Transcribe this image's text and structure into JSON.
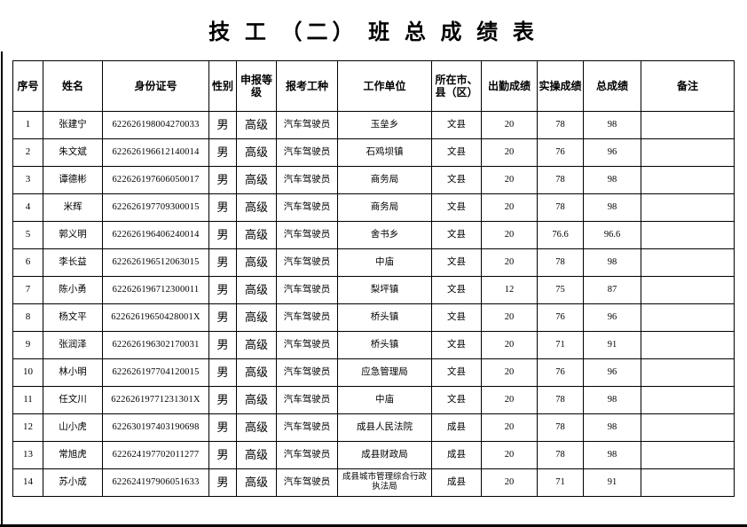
{
  "page": {
    "title": "技 工 （二） 班 总 成 绩 表"
  },
  "table": {
    "headers": [
      "序号",
      "姓名",
      "身份证号",
      "性别",
      "申报等级",
      "报考工种",
      "工作单位",
      "所在市、县（区）",
      "出勤成绩",
      "实操成绩",
      "总成绩",
      "备注"
    ],
    "rows": [
      {
        "no": "1",
        "name": "张建宁",
        "id_number": "622626198004270033",
        "gender": "男",
        "level": "高级",
        "job": "汽车驾驶员",
        "unit": "玉垒乡",
        "county": "文县",
        "attendance": "20",
        "practical": "78",
        "total": "98",
        "remark": ""
      },
      {
        "no": "2",
        "name": "朱文斌",
        "id_number": "622626196612140014",
        "gender": "男",
        "level": "高级",
        "job": "汽车驾驶员",
        "unit": "石鸡坝镇",
        "county": "文县",
        "attendance": "20",
        "practical": "76",
        "total": "96",
        "remark": ""
      },
      {
        "no": "3",
        "name": "谭德彬",
        "id_number": "622626197606050017",
        "gender": "男",
        "level": "高级",
        "job": "汽车驾驶员",
        "unit": "商务局",
        "county": "文县",
        "attendance": "20",
        "practical": "78",
        "total": "98",
        "remark": ""
      },
      {
        "no": "4",
        "name": "米辉",
        "id_number": "622626197709300015",
        "gender": "男",
        "level": "高级",
        "job": "汽车驾驶员",
        "unit": "商务局",
        "county": "文县",
        "attendance": "20",
        "practical": "78",
        "total": "98",
        "remark": ""
      },
      {
        "no": "5",
        "name": "郭义明",
        "id_number": "622626196406240014",
        "gender": "男",
        "level": "高级",
        "job": "汽车驾驶员",
        "unit": "舍书乡",
        "county": "文县",
        "attendance": "20",
        "practical": "76.6",
        "total": "96.6",
        "remark": ""
      },
      {
        "no": "6",
        "name": "李长益",
        "id_number": "622626196512063015",
        "gender": "男",
        "level": "高级",
        "job": "汽车驾驶员",
        "unit": "中庙",
        "county": "文县",
        "attendance": "20",
        "practical": "78",
        "total": "98",
        "remark": ""
      },
      {
        "no": "7",
        "name": "陈小勇",
        "id_number": "622626196712300011",
        "gender": "男",
        "level": "高级",
        "job": "汽车驾驶员",
        "unit": "梨坪镇",
        "county": "文县",
        "attendance": "12",
        "practical": "75",
        "total": "87",
        "remark": ""
      },
      {
        "no": "8",
        "name": "杨文平",
        "id_number": "62262619650428001X",
        "gender": "男",
        "level": "高级",
        "job": "汽车驾驶员",
        "unit": "桥头镇",
        "county": "文县",
        "attendance": "20",
        "practical": "76",
        "total": "96",
        "remark": ""
      },
      {
        "no": "9",
        "name": "张润泽",
        "id_number": "622626196302170031",
        "gender": "男",
        "level": "高级",
        "job": "汽车驾驶员",
        "unit": "桥头镇",
        "county": "文县",
        "attendance": "20",
        "practical": "71",
        "total": "91",
        "remark": ""
      },
      {
        "no": "10",
        "name": "林小明",
        "id_number": "622626197704120015",
        "gender": "男",
        "level": "高级",
        "job": "汽车驾驶员",
        "unit": "应急管理局",
        "county": "文县",
        "attendance": "20",
        "practical": "76",
        "total": "96",
        "remark": ""
      },
      {
        "no": "11",
        "name": "任文川",
        "id_number": "62262619771231301X",
        "gender": "男",
        "level": "高级",
        "job": "汽车驾驶员",
        "unit": "中庙",
        "county": "文县",
        "attendance": "20",
        "practical": "78",
        "total": "98",
        "remark": ""
      },
      {
        "no": "12",
        "name": "山小虎",
        "id_number": "622630197403190698",
        "gender": "男",
        "level": "高级",
        "job": "汽车驾驶员",
        "unit": "成县人民法院",
        "county": "成县",
        "attendance": "20",
        "practical": "78",
        "total": "98",
        "remark": ""
      },
      {
        "no": "13",
        "name": "常旭虎",
        "id_number": "622624197702011277",
        "gender": "男",
        "level": "高级",
        "job": "汽车驾驶员",
        "unit": "成县财政局",
        "county": "成县",
        "attendance": "20",
        "practical": "78",
        "total": "98",
        "remark": ""
      },
      {
        "no": "14",
        "name": "苏小成",
        "id_number": "622624197906051633",
        "gender": "男",
        "level": "高级",
        "job": "汽车驾驶员",
        "unit": "成县城市管理综合行政执法局",
        "county": "成县",
        "attendance": "20",
        "practical": "71",
        "total": "91",
        "remark": ""
      }
    ]
  }
}
